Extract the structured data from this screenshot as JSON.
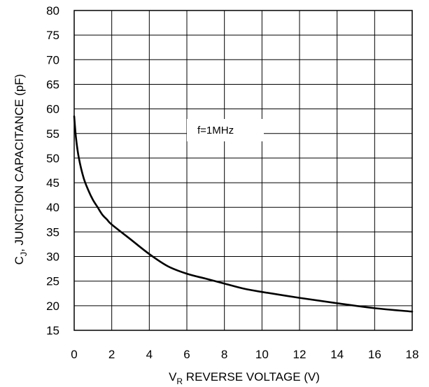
{
  "chart_data": {
    "type": "line",
    "title": "",
    "xlabel_main": "V",
    "xlabel_sub": "R",
    "xlabel_rest": " REVERSE VOLTAGE (V)",
    "ylabel_main": "C",
    "ylabel_sub": "J",
    "ylabel_rest": ", JUNCTION CAPACITANCE (pF)",
    "xlim": [
      0,
      18
    ],
    "ylim": [
      15,
      80
    ],
    "xticks": [
      0,
      2,
      4,
      6,
      8,
      10,
      12,
      14,
      16,
      18
    ],
    "yticks": [
      15,
      20,
      25,
      30,
      35,
      40,
      45,
      50,
      55,
      60,
      65,
      70,
      75,
      80
    ],
    "xtick_labels": [
      "0",
      "2",
      "4",
      "6",
      "8",
      "10",
      "12",
      "14",
      "16",
      "18"
    ],
    "ytick_labels": [
      "15",
      "20",
      "25",
      "30",
      "35",
      "40",
      "45",
      "50",
      "55",
      "60",
      "65",
      "70",
      "75",
      "80"
    ],
    "grid": true,
    "annotation": "f=1MHz",
    "series": [
      {
        "x": [
          0,
          0.1,
          0.25,
          0.5,
          0.75,
          1.0,
          1.25,
          1.5,
          1.75,
          2,
          3,
          4,
          5,
          6,
          7,
          8,
          9,
          10,
          12,
          14,
          16,
          18
        ],
        "y": [
          58.5,
          54,
          50,
          46,
          43.5,
          41.5,
          40,
          38.5,
          37.5,
          36.5,
          33.5,
          30.5,
          28,
          26.5,
          25.5,
          24.5,
          23.5,
          22.8,
          21.6,
          20.5,
          19.5,
          18.8
        ]
      }
    ],
    "colors": {
      "line": "#000000",
      "grid": "#000000",
      "background": "#ffffff"
    }
  }
}
